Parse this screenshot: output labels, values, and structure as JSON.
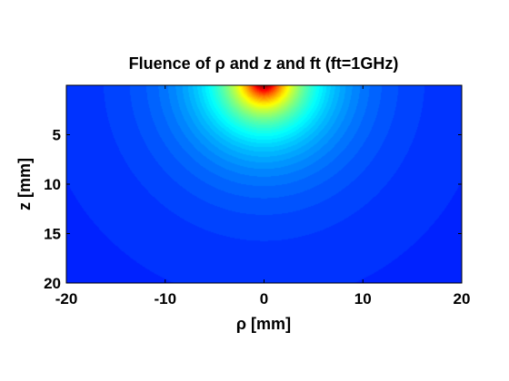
{
  "chart_data": {
    "type": "heatmap",
    "title": "Fluence of ρ and z and ft (ft=1GHz)",
    "xlabel": "ρ [mm]",
    "ylabel": "z [mm]",
    "xlim": [
      -20,
      20
    ],
    "ylim": [
      0,
      20
    ],
    "y_inverted": true,
    "x_ticks": [
      -20,
      -10,
      0,
      10,
      20
    ],
    "x_tick_labels": [
      "-20",
      "-10",
      "0",
      "10",
      "20"
    ],
    "y_ticks": [
      5,
      10,
      15,
      20
    ],
    "y_tick_labels": [
      "5",
      "10",
      "15",
      "20"
    ],
    "colormap": "jet",
    "peak": {
      "rho": 0,
      "z": 0
    },
    "grid": false
  }
}
